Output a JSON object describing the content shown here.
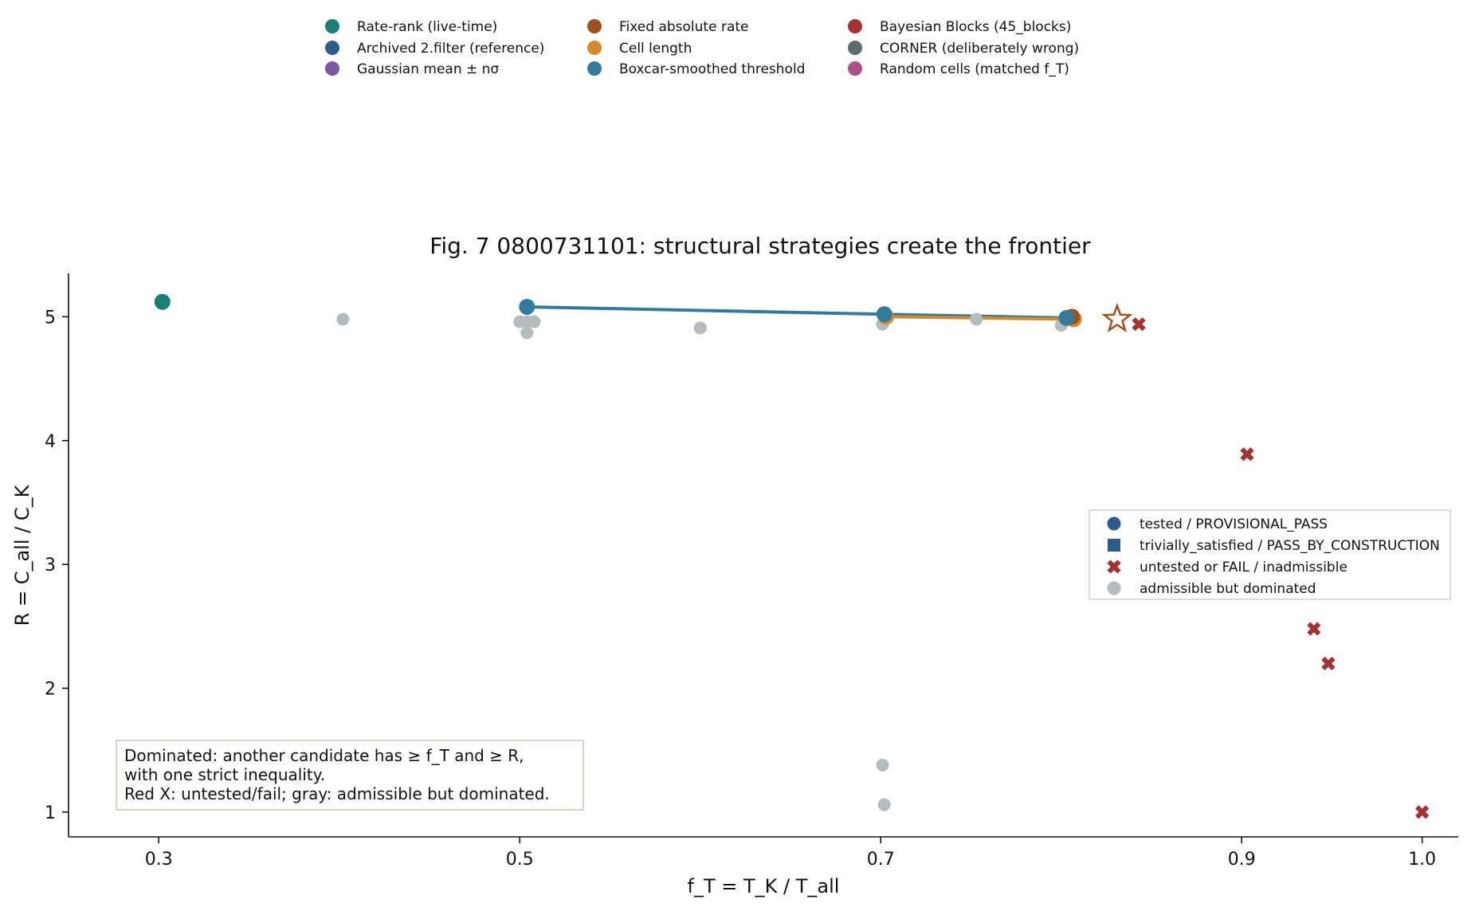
{
  "chart_data": {
    "type": "scatter",
    "title": "Fig. 7  0800731101: structural strategies create the frontier",
    "xlabel": "f_T = T_K / T_all",
    "ylabel": "R = C_all / C_K",
    "xlim": [
      0.25,
      1.02
    ],
    "ylim": [
      0.8,
      5.35
    ],
    "x_ticks": [
      0.3,
      0.5,
      0.7,
      0.9,
      1.0
    ],
    "x_tick_labels": [
      "0.3",
      "0.5",
      "0.7",
      "0.9",
      "1.0"
    ],
    "y_ticks": [
      1,
      2,
      3,
      4,
      5
    ],
    "y_tick_labels": [
      "1",
      "2",
      "3",
      "4",
      "5"
    ],
    "grid": false,
    "strategy_legend": {
      "placement": "top-center",
      "entries": [
        {
          "label": "Rate-rank (live-time)",
          "color": "#1a7f72"
        },
        {
          "label": "Archived 2.filter (reference)",
          "color": "#2e5c8a"
        },
        {
          "label": "Gaussian mean ± nσ",
          "color": "#7b57a3"
        },
        {
          "label": "Fixed absolute rate",
          "color": "#a0521d"
        },
        {
          "label": "Cell length",
          "color": "#d4892a"
        },
        {
          "label": "Boxcar-smoothed threshold",
          "color": "#337b9e"
        },
        {
          "label": "Bayesian Blocks (45_blocks)",
          "color": "#a33333"
        },
        {
          "label": "CORNER (deliberately wrong)",
          "color": "#5f6b6d"
        },
        {
          "label": "Random cells (matched f_T)",
          "color": "#b04f86"
        }
      ]
    },
    "status_legend": {
      "placement": "center-right",
      "entries": [
        {
          "label": "tested / PROVISIONAL_PASS",
          "marker": "circle",
          "color": "#2e5c8a"
        },
        {
          "label": "trivially_satisfied / PASS_BY_CONSTRUCTION",
          "marker": "square",
          "color": "#2e5c8a"
        },
        {
          "label": "untested or FAIL / inadmissible",
          "marker": "x",
          "color": "#a33333"
        },
        {
          "label": "admissible but dominated",
          "marker": "circle",
          "color": "#b4bcbe"
        }
      ]
    },
    "series": [
      {
        "name": "Rate-rank (live-time)",
        "status": "tested",
        "color": "#1a7f72",
        "points": [
          [
            0.302,
            5.12
          ]
        ]
      },
      {
        "name": "Boxcar-smoothed threshold",
        "status": "frontier",
        "color": "#337b9e",
        "points": [
          [
            0.504,
            5.08
          ],
          [
            0.702,
            5.02
          ],
          [
            0.803,
            4.99
          ]
        ]
      },
      {
        "name": "Cell length",
        "status": "frontier",
        "color": "#d4892a",
        "points": [
          [
            0.703,
            5.0
          ],
          [
            0.807,
            4.98
          ]
        ]
      },
      {
        "name": "Fixed absolute rate",
        "status": "tested",
        "color": "#a0521d",
        "points": [
          [
            0.806,
            5.0
          ]
        ]
      },
      {
        "name": "admissible but dominated",
        "status": "dominated",
        "color": "#b4bcbe",
        "points": [
          [
            0.402,
            4.98
          ],
          [
            0.5,
            4.96
          ],
          [
            0.504,
            4.96
          ],
          [
            0.508,
            4.96
          ],
          [
            0.504,
            4.87
          ],
          [
            0.6,
            4.91
          ],
          [
            0.701,
            4.94
          ],
          [
            0.753,
            4.98
          ],
          [
            0.8,
            4.93
          ],
          [
            0.701,
            1.38
          ],
          [
            0.702,
            1.06
          ]
        ]
      },
      {
        "name": "untested or FAIL / inadmissible",
        "status": "fail",
        "color": "#a33333",
        "points": [
          [
            0.843,
            4.94
          ],
          [
            0.903,
            3.89
          ],
          [
            0.927,
            3.05
          ],
          [
            0.94,
            2.48
          ],
          [
            0.948,
            2.2
          ],
          [
            1.0,
            1.0
          ]
        ]
      }
    ],
    "reference_star": {
      "x": 0.831,
      "y": 4.98,
      "color": "#a0521d"
    },
    "annotation": {
      "lines": [
        "Dominated: another candidate has ≥ f_T and ≥ R,",
        "with one strict inequality.",
        "Red X: untested/fail; gray: admissible but dominated."
      ],
      "placement": "bottom-left"
    }
  }
}
